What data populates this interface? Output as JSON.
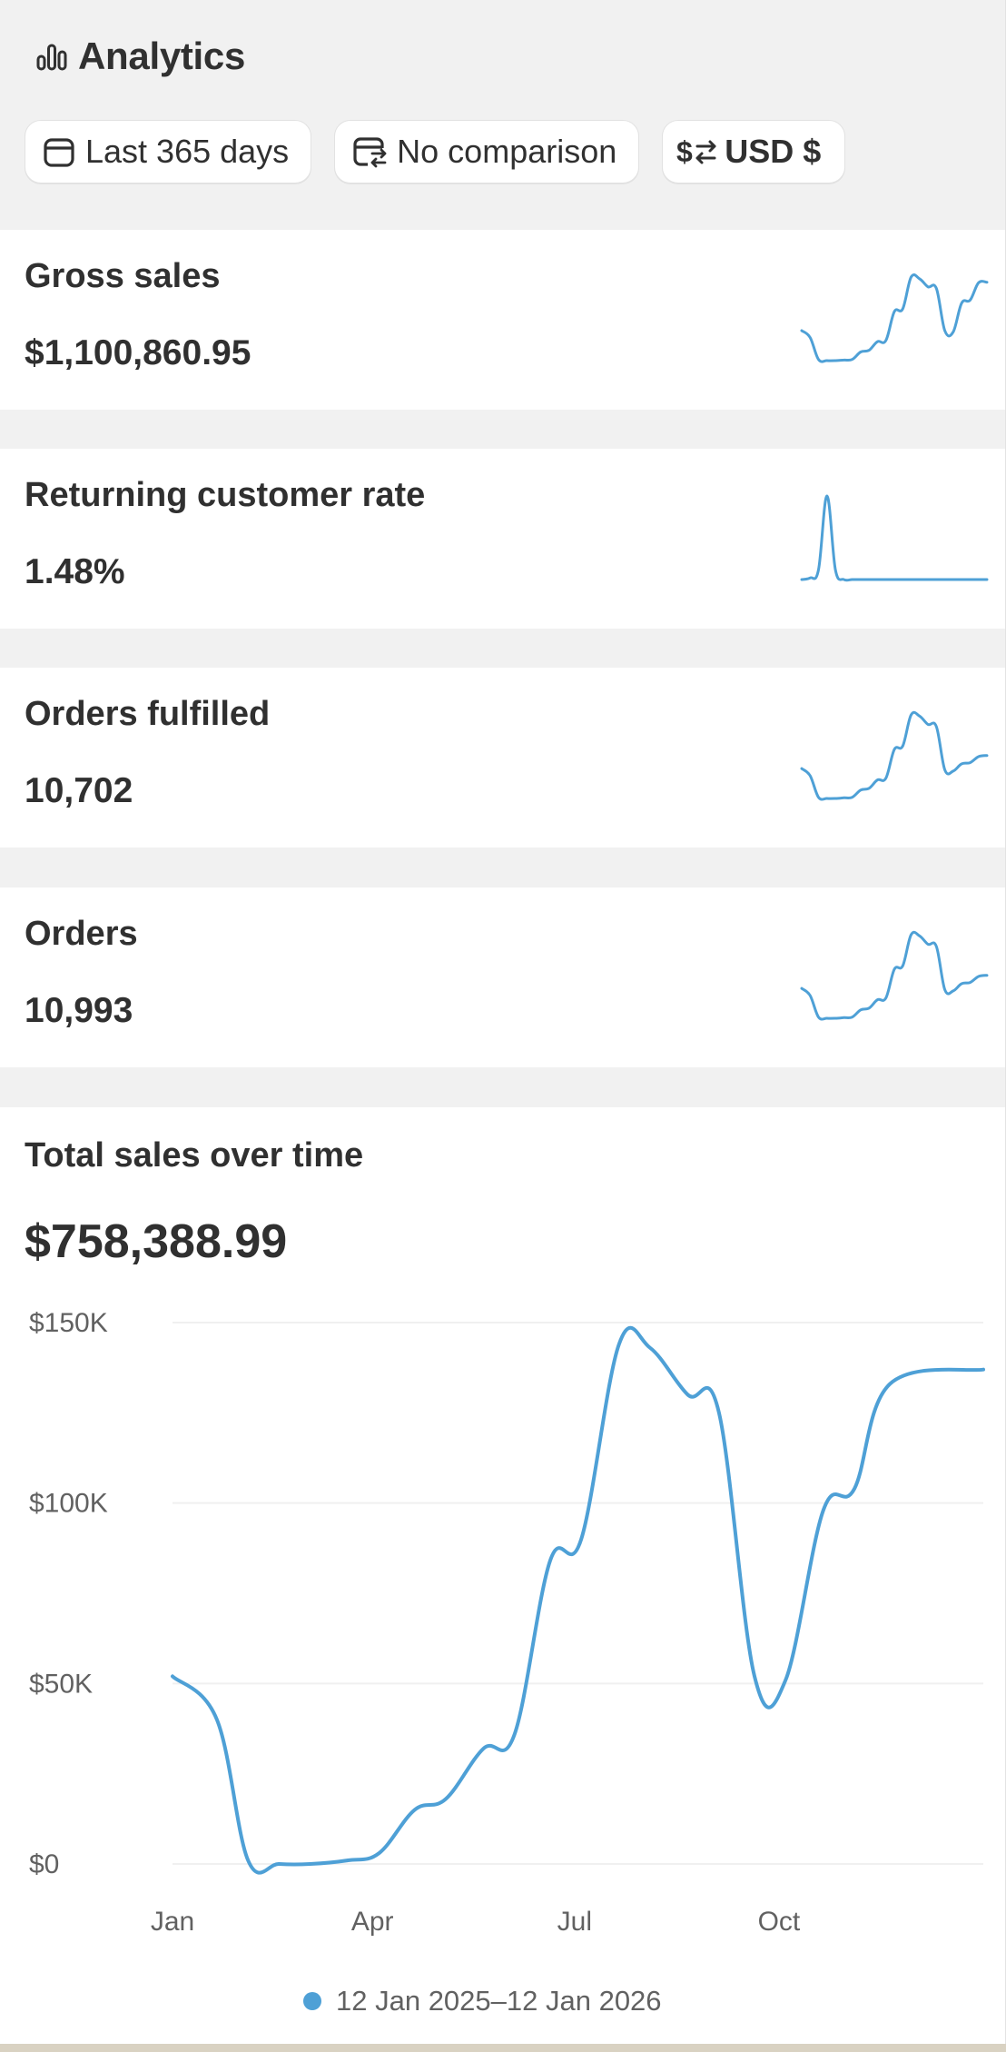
{
  "header": {
    "title": "Analytics",
    "icon": "bar-chart-icon"
  },
  "filters": [
    {
      "label": "Last 365 days",
      "icon": "calendar-icon"
    },
    {
      "label": "No comparison",
      "icon": "calendar-compare-icon"
    },
    {
      "label": "USD $",
      "icon": "currency-exchange-icon"
    }
  ],
  "metrics": [
    {
      "title": "Gross sales",
      "value": "$1,100,860.95",
      "trend": [
        52,
        40,
        2,
        0,
        0,
        1,
        2,
        15,
        18,
        33,
        35,
        85,
        90,
        145,
        142,
        128,
        125,
        52,
        50,
        100,
        105,
        135,
        136
      ]
    },
    {
      "title": "Returning customer rate",
      "value": "1.48%",
      "trend": [
        4,
        5,
        10,
        55,
        10,
        4,
        4,
        4,
        4,
        4,
        4,
        4,
        4,
        4,
        4,
        4,
        4,
        4,
        4,
        4,
        4,
        4,
        4
      ]
    },
    {
      "title": "Orders fulfilled",
      "value": "10,702",
      "trend": [
        50,
        38,
        2,
        0,
        0,
        1,
        2,
        14,
        17,
        31,
        34,
        82,
        88,
        140,
        138,
        124,
        120,
        48,
        46,
        58,
        60,
        70,
        72
      ]
    },
    {
      "title": "Orders",
      "value": "10,993",
      "trend": [
        50,
        38,
        2,
        0,
        0,
        1,
        2,
        14,
        17,
        31,
        34,
        82,
        88,
        140,
        138,
        124,
        120,
        48,
        46,
        58,
        60,
        70,
        72
      ]
    }
  ],
  "sales_chart": {
    "title": "Total sales over time",
    "total": "$758,388.99",
    "legend": "12 Jan 2025–12 Jan 2026"
  },
  "chart_data": {
    "type": "line",
    "title": "Total sales over time",
    "x": [
      "2025-01-12",
      "2025-02-01",
      "2025-02-15",
      "2025-03-01",
      "2025-03-15",
      "2025-04-01",
      "2025-04-15",
      "2025-05-01",
      "2025-05-15",
      "2025-06-01",
      "2025-06-15",
      "2025-07-01",
      "2025-07-15",
      "2025-08-01",
      "2025-08-15",
      "2025-09-01",
      "2025-09-15",
      "2025-10-01",
      "2025-10-15",
      "2025-11-01",
      "2025-11-15",
      "2025-12-01",
      "2026-01-12"
    ],
    "series": [
      {
        "values": [
          52000,
          40000,
          1000,
          0,
          0,
          1000,
          3000,
          15000,
          18000,
          32000,
          36000,
          84000,
          90000,
          144000,
          143000,
          130000,
          125000,
          52000,
          51000,
          98000,
          104000,
          133000,
          137000
        ]
      }
    ],
    "x_tick_labels": [
      "Jan",
      "Apr",
      "Jul",
      "Oct"
    ],
    "x_tick_dates": [
      "2025-01-12",
      "2025-04-12",
      "2025-07-12",
      "2025-10-12"
    ],
    "y_tick_labels": [
      "$0",
      "$50K",
      "$100K",
      "$150K"
    ],
    "y_ticks": [
      0,
      50000,
      100000,
      150000
    ],
    "ylim": [
      0,
      150000
    ],
    "xlim": [
      "2025-01-12",
      "2026-01-12"
    ],
    "grid": true,
    "legend_position": "bottom",
    "color": "#4ea0d6",
    "grid_color": "#f0f0f0"
  }
}
